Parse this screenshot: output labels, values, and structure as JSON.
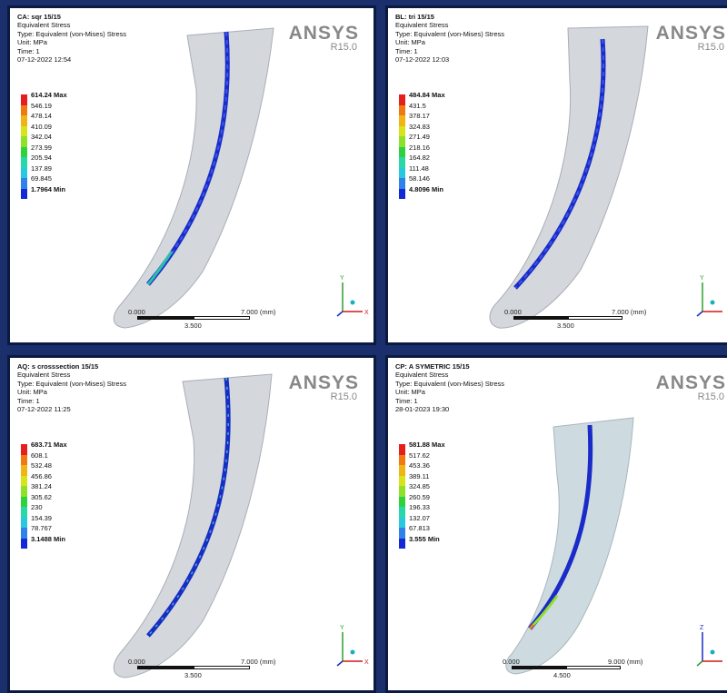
{
  "panels": [
    {
      "id": "p1",
      "title": "CA: sqr 15/15",
      "lines": [
        "Equivalent Stress",
        "Type: Equivalent (von-Mises) Stress",
        "Unit: MPa",
        "Time: 1",
        "07-12-2022 12:54"
      ],
      "legend": [
        "614.24 Max",
        "546.19",
        "478.14",
        "410.09",
        "342.04",
        "273.99",
        "205.94",
        "137.89",
        "69.845",
        "1.7964 Min"
      ],
      "scale": {
        "start": "0.000",
        "end": "7.000 (mm)",
        "mid": "3.500"
      },
      "axis_top": "Y"
    },
    {
      "id": "p2",
      "title": "BL: tri 15/15",
      "lines": [
        "Equivalent Stress",
        "Type: Equivalent (von-Mises) Stress",
        "Unit: MPa",
        "Time: 1",
        "07-12-2022 12:03"
      ],
      "legend": [
        "484.84 Max",
        "431.5",
        "378.17",
        "324.83",
        "271.49",
        "218.16",
        "164.82",
        "111.48",
        "58.146",
        "4.8096 Min"
      ],
      "scale": {
        "start": "0.000",
        "end": "7.000 (mm)",
        "mid": "3.500"
      },
      "axis_top": "Y"
    },
    {
      "id": "p3",
      "title": "AQ: s crosssection 15/15",
      "lines": [
        "Equivalent Stress",
        "Type: Equivalent (von-Mises) Stress",
        "Unit: MPa",
        "Time: 1",
        "07-12-2022 11:25"
      ],
      "legend": [
        "683.71 Max",
        "608.1",
        "532.48",
        "456.86",
        "381.24",
        "305.62",
        "230",
        "154.39",
        "78.767",
        "3.1488 Min"
      ],
      "scale": {
        "start": "0.000",
        "end": "7.000 (mm)",
        "mid": "3.500"
      },
      "axis_top": "Y"
    },
    {
      "id": "p4",
      "title": "CP: A SYMETRIC 15/15",
      "lines": [
        "Equivalent Stress",
        "Type: Equivalent (von-Mises) Stress",
        "Unit: MPa",
        "Time: 1",
        "28-01-2023 19:30"
      ],
      "legend": [
        "581.88 Max",
        "517.62",
        "453.36",
        "389.11",
        "324.85",
        "260.59",
        "196.33",
        "132.07",
        "67.813",
        "3.555 Min"
      ],
      "scale": {
        "start": "0.000",
        "end": "9.000 (mm)",
        "mid": "4.500"
      },
      "axis_top": "Z"
    }
  ],
  "brand": {
    "name": "ANSYS",
    "version": "R15.0"
  },
  "legend_colors": [
    "#e61e1e",
    "#f07a10",
    "#f0b414",
    "#d8e41a",
    "#8ee028",
    "#2ed23c",
    "#28d8a8",
    "#28c8e0",
    "#2e82e8",
    "#1428d8"
  ]
}
